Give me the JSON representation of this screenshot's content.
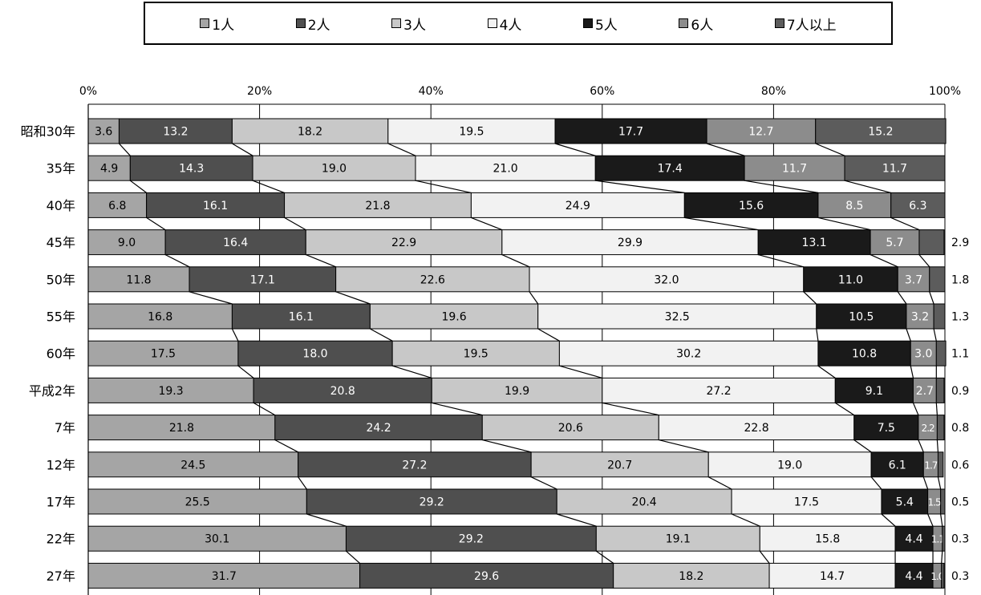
{
  "chart_data": {
    "type": "bar",
    "orientation": "horizontal",
    "stacked": true,
    "percent_stacked": true,
    "categories": [
      "昭和30年",
      "35年",
      "40年",
      "45年",
      "50年",
      "55年",
      "60年",
      "平成2年",
      "7年",
      "12年",
      "17年",
      "22年",
      "27年"
    ],
    "series": [
      {
        "name": "1人",
        "color": "#a5a5a5",
        "label_color": "#000000",
        "values": [
          3.6,
          4.9,
          6.8,
          9.0,
          11.8,
          16.8,
          17.5,
          19.3,
          21.8,
          24.5,
          25.5,
          30.1,
          31.7
        ]
      },
      {
        "name": "2人",
        "color": "#4f4f4f",
        "label_color": "#ffffff",
        "values": [
          13.2,
          14.3,
          16.1,
          16.4,
          17.1,
          16.1,
          18.0,
          20.8,
          24.2,
          27.2,
          29.2,
          29.2,
          29.6
        ]
      },
      {
        "name": "3人",
        "color": "#c8c8c8",
        "label_color": "#000000",
        "values": [
          18.2,
          19.0,
          21.8,
          22.9,
          22.6,
          19.6,
          19.5,
          19.9,
          20.6,
          20.7,
          20.4,
          19.1,
          18.2
        ]
      },
      {
        "name": "4人",
        "color": "#f2f2f2",
        "label_color": "#000000",
        "values": [
          19.5,
          21.0,
          24.9,
          29.9,
          32.0,
          32.5,
          30.2,
          27.2,
          22.8,
          19.0,
          17.5,
          15.8,
          14.7
        ]
      },
      {
        "name": "5人",
        "color": "#1a1a1a",
        "label_color": "#ffffff",
        "values": [
          17.7,
          17.4,
          15.6,
          13.1,
          11.0,
          10.5,
          10.8,
          9.1,
          7.5,
          6.1,
          5.4,
          4.4,
          4.4
        ]
      },
      {
        "name": "6人",
        "color": "#8c8c8c",
        "label_color": "#ffffff",
        "values": [
          12.7,
          11.7,
          8.5,
          5.7,
          3.7,
          3.2,
          3.0,
          2.7,
          2.2,
          1.7,
          1.5,
          1.1,
          1.0
        ]
      },
      {
        "name": "7人以上",
        "color": "#5c5c5c",
        "label_color": "#ffffff",
        "values": [
          15.2,
          11.7,
          6.3,
          2.9,
          1.8,
          1.3,
          1.1,
          0.9,
          0.8,
          0.6,
          0.5,
          0.3,
          0.3
        ]
      }
    ],
    "outside_labels": [
      "",
      "",
      "",
      "2.9",
      "1.8",
      "1.3",
      "1.1",
      "0.9",
      "0.8",
      "0.6",
      "0.5",
      "0.3",
      "0.3"
    ],
    "x_ticks": [
      "0%",
      "20%",
      "40%",
      "60%",
      "80%",
      "100%"
    ],
    "xlim": [
      0,
      100
    ],
    "legend_position": "top",
    "grid": true,
    "xlabel": "",
    "ylabel": ""
  }
}
